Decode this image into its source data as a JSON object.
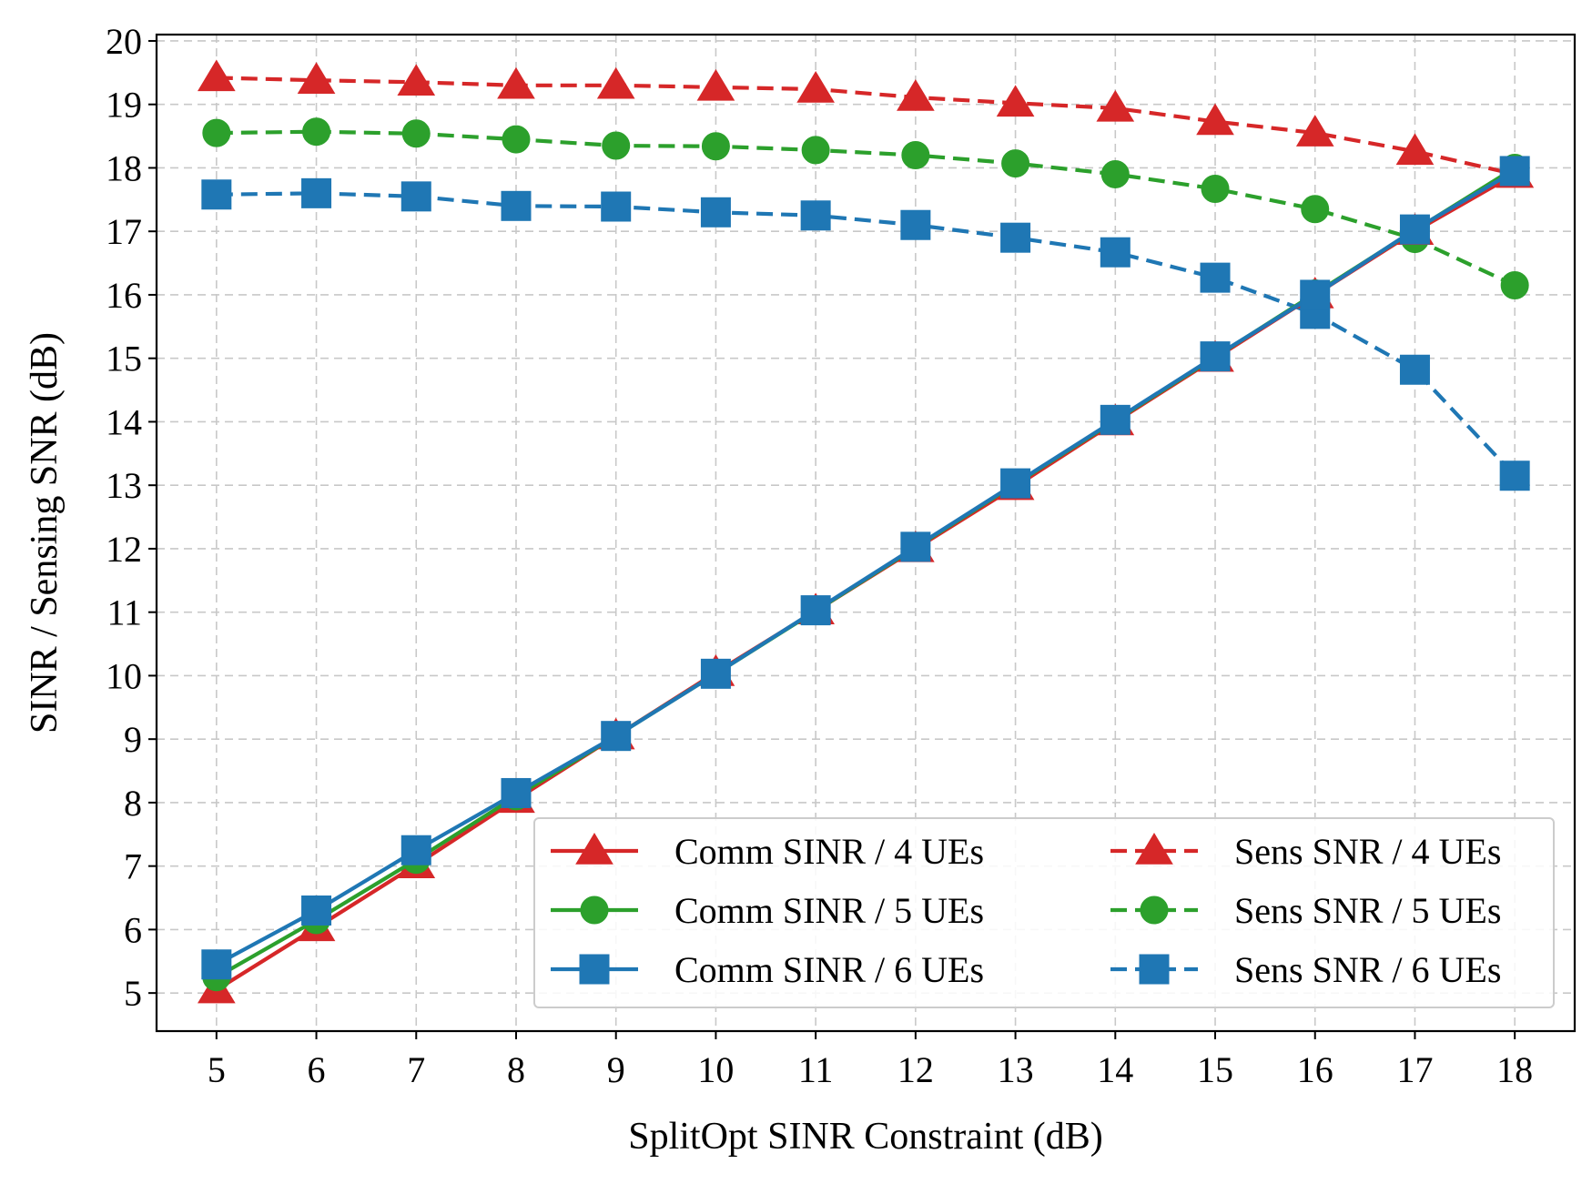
{
  "chart_data": {
    "type": "line",
    "xlabel": "SplitOpt SINR Constraint (dB)",
    "ylabel": "SINR / Sensing SNR (dB)",
    "xlim": [
      4.4,
      18.6
    ],
    "ylim": [
      4.4,
      20.1
    ],
    "xticks": [
      5,
      6,
      7,
      8,
      9,
      10,
      11,
      12,
      13,
      14,
      15,
      16,
      17,
      18
    ],
    "yticks": [
      5,
      6,
      7,
      8,
      9,
      10,
      11,
      12,
      13,
      14,
      15,
      16,
      17,
      18,
      19,
      20
    ],
    "grid": true,
    "legend_position": "lower-right",
    "legend_columns": 2,
    "x": [
      5,
      6,
      7,
      8,
      9,
      10,
      11,
      12,
      13,
      14,
      15,
      16,
      17,
      18
    ],
    "series": [
      {
        "name": "Comm SINR / 4 UEs",
        "color": "#d62728",
        "line": "solid",
        "marker": "triangle",
        "values": [
          5.05,
          6.03,
          7.02,
          8.05,
          9.05,
          10.05,
          11.02,
          12.0,
          12.98,
          14.0,
          15.0,
          16.0,
          17.0,
          17.9
        ]
      },
      {
        "name": "Comm SINR / 5 UEs",
        "color": "#2ca02c",
        "line": "solid",
        "marker": "circle",
        "values": [
          5.25,
          6.15,
          7.1,
          8.1,
          9.05,
          10.03,
          11.02,
          12.02,
          13.02,
          14.02,
          15.02,
          16.02,
          17.02,
          18.0
        ]
      },
      {
        "name": "Comm SINR / 6 UEs",
        "color": "#1f77b4",
        "line": "solid",
        "marker": "square",
        "values": [
          5.45,
          6.3,
          7.25,
          8.15,
          9.05,
          10.03,
          11.03,
          12.03,
          13.03,
          14.03,
          15.03,
          16.0,
          17.03,
          17.95
        ]
      },
      {
        "name": "Sens SNR / 4 UEs",
        "color": "#d62728",
        "line": "dashed",
        "marker": "triangle",
        "values": [
          19.42,
          19.38,
          19.35,
          19.3,
          19.3,
          19.27,
          19.24,
          19.11,
          19.02,
          18.94,
          18.73,
          18.55,
          18.26,
          17.9
        ]
      },
      {
        "name": "Sens SNR / 5 UEs",
        "color": "#2ca02c",
        "line": "dashed",
        "marker": "circle",
        "values": [
          18.55,
          18.57,
          18.54,
          18.45,
          18.35,
          18.34,
          18.28,
          18.2,
          18.07,
          17.9,
          17.67,
          17.35,
          16.88,
          16.15
        ]
      },
      {
        "name": "Sens SNR / 6 UEs",
        "color": "#1f77b4",
        "line": "dashed",
        "marker": "square",
        "values": [
          17.58,
          17.6,
          17.55,
          17.4,
          17.39,
          17.3,
          17.25,
          17.1,
          16.9,
          16.67,
          16.27,
          15.7,
          14.82,
          13.15
        ]
      }
    ]
  }
}
